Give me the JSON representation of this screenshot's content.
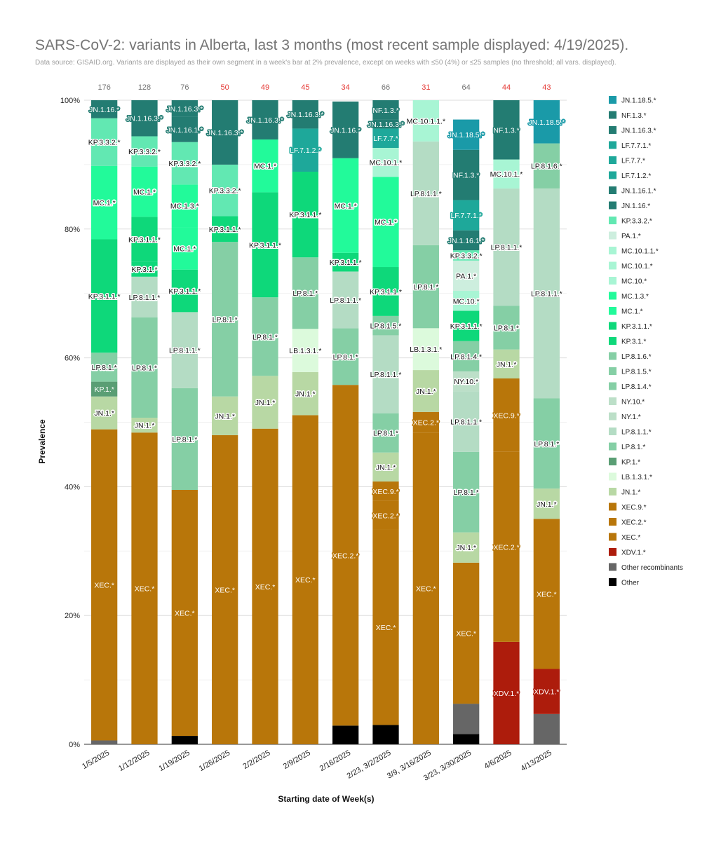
{
  "chart_data": {
    "type": "bar",
    "stacked": true,
    "title": "SARS-CoV-2: variants in Alberta, last 3 months (most recent sample displayed: 4/19/2025).",
    "subtitle": "Data source: GISAID.org. Variants are displayed as their own segment in a week's bar at 2% prevalence, except on weeks with ≤50 (4%) or ≤25 samples (no threshold; all vars. displayed).",
    "xlabel": "Starting date of Week(s)",
    "ylabel": "Prevalence",
    "ylim": [
      0,
      100
    ],
    "y_ticks": [
      "0%",
      "20%",
      "40%",
      "60%",
      "80%",
      "100%"
    ],
    "legend_position": "right",
    "categories": [
      "1/5/2025",
      "1/12/2025",
      "1/19/2025",
      "1/26/2025",
      "2/2/2025",
      "2/9/2025",
      "2/16/2025",
      "2/23, 3/2/2025",
      "3/9, 3/16/2025",
      "3/23, 3/30/2025",
      "4/6/2025",
      "4/13/2025"
    ],
    "sample_counts": [
      "176",
      "128",
      "76",
      "50",
      "49",
      "45",
      "34",
      "66",
      "31",
      "64",
      "44",
      "43"
    ],
    "count_colors": [
      "#757575",
      "#757575",
      "#757575",
      "#e53935",
      "#e53935",
      "#e53935",
      "#e53935",
      "#757575",
      "#e53935",
      "#757575",
      "#e53935",
      "#e53935"
    ],
    "legend": [
      {
        "name": "JN.1.18.5.*",
        "color": "#1a9aa8"
      },
      {
        "name": "NF.1.3.*",
        "color": "#237c72"
      },
      {
        "name": "JN.1.16.3.*",
        "color": "#237c72"
      },
      {
        "name": "LF.7.7.1.*",
        "color": "#1ea89a"
      },
      {
        "name": "LF.7.7.*",
        "color": "#1ea89a"
      },
      {
        "name": "LF.7.1.2.*",
        "color": "#1ea89a"
      },
      {
        "name": "JN.1.16.1.*",
        "color": "#237c72"
      },
      {
        "name": "JN.1.16.*",
        "color": "#237c72"
      },
      {
        "name": "KP.3.3.2.*",
        "color": "#62e8b2"
      },
      {
        "name": "PA.1.*",
        "color": "#cdeede"
      },
      {
        "name": "MC.10.1.1.*",
        "color": "#a8f5d4"
      },
      {
        "name": "MC.10.1.*",
        "color": "#a8f5d4"
      },
      {
        "name": "MC.10.*",
        "color": "#a8f5d4"
      },
      {
        "name": "MC.1.3.*",
        "color": "#22fa9a"
      },
      {
        "name": "MC.1.*",
        "color": "#22fa9a"
      },
      {
        "name": "KP.3.1.1.*",
        "color": "#0ed87a"
      },
      {
        "name": "KP.3.1.*",
        "color": "#0ed87a"
      },
      {
        "name": "LP.8.1.6.*",
        "color": "#85cfa5"
      },
      {
        "name": "LP.8.1.5.*",
        "color": "#85cfa5"
      },
      {
        "name": "LP.8.1.4.*",
        "color": "#85cfa5"
      },
      {
        "name": "NY.10.*",
        "color": "#bcdfc8"
      },
      {
        "name": "NY.1.*",
        "color": "#bcdfc8"
      },
      {
        "name": "LP.8.1.1.*",
        "color": "#b4dcc4"
      },
      {
        "name": "LP.8.1.*",
        "color": "#85cfa5"
      },
      {
        "name": "KP.1.*",
        "color": "#5a9e74"
      },
      {
        "name": "LB.1.3.1.*",
        "color": "#dcfadc"
      },
      {
        "name": "JN.1.*",
        "color": "#b8d8a4"
      },
      {
        "name": "XEC.9.*",
        "color": "#b8760a"
      },
      {
        "name": "XEC.2.*",
        "color": "#b8760a"
      },
      {
        "name": "XEC.*",
        "color": "#b8760a"
      },
      {
        "name": "XDV.1.*",
        "color": "#ad1c0c"
      },
      {
        "name": "Other recombinants",
        "color": "#666666"
      },
      {
        "name": "Other",
        "color": "#000000"
      }
    ],
    "series": [
      {
        "category": "1/5/2025",
        "segments": [
          {
            "name": "Other recombinants",
            "value": 0.6,
            "label": false
          },
          {
            "name": "XEC.*",
            "value": 48.3,
            "label": true
          },
          {
            "name": "JN.1.*",
            "value": 5.1,
            "label": true
          },
          {
            "name": "KP.1.*",
            "value": 2.3,
            "label": true
          },
          {
            "name": "LP.8.1.*",
            "value": 4.5,
            "label": true
          },
          {
            "name": "KP.3.1.1.*",
            "value": 17.6,
            "label": true
          },
          {
            "name": "MC.1.*",
            "value": 11.4,
            "label": true
          },
          {
            "name": "KP.3.3.2.*",
            "value": 7.4,
            "label": true
          },
          {
            "name": "JN.1.16.*",
            "value": 2.8,
            "label": true
          }
        ]
      },
      {
        "category": "1/12/2025",
        "segments": [
          {
            "name": "XEC.*",
            "value": 48.4,
            "label": true
          },
          {
            "name": "JN.1.*",
            "value": 2.3,
            "label": true
          },
          {
            "name": "LP.8.1.*",
            "value": 15.6,
            "label": true
          },
          {
            "name": "LP.8.1.1.*",
            "value": 6.3,
            "label": true
          },
          {
            "name": "KP.3.1.*",
            "value": 2.3,
            "label": true
          },
          {
            "name": "KP.3.1.1.*",
            "value": 7.0,
            "label": true
          },
          {
            "name": "MC.1.*",
            "value": 7.8,
            "label": true
          },
          {
            "name": "KP.3.3.2.*",
            "value": 4.7,
            "label": true
          },
          {
            "name": "JN.1.16.3.*",
            "value": 5.6,
            "label": true
          }
        ]
      },
      {
        "category": "1/19/2025",
        "segments": [
          {
            "name": "Other",
            "value": 1.3,
            "label": false
          },
          {
            "name": "XEC.*",
            "value": 38.2,
            "label": true
          },
          {
            "name": "LP.8.1.*",
            "value": 15.8,
            "label": true
          },
          {
            "name": "LP.8.1.1.*",
            "value": 11.8,
            "label": true
          },
          {
            "name": "KP.3.1.1.*",
            "value": 6.6,
            "label": true
          },
          {
            "name": "MC.1.*",
            "value": 6.6,
            "label": true
          },
          {
            "name": "MC.1.3.*",
            "value": 6.6,
            "label": true
          },
          {
            "name": "KP.3.3.2.*",
            "value": 6.6,
            "label": true
          },
          {
            "name": "JN.1.16.1.*",
            "value": 3.9,
            "label": true
          },
          {
            "name": "JN.1.16.3.*",
            "value": 2.6,
            "label": true
          }
        ]
      },
      {
        "category": "1/26/2025",
        "segments": [
          {
            "name": "XEC.*",
            "value": 48.0,
            "label": true
          },
          {
            "name": "JN.1.*",
            "value": 6.0,
            "label": true
          },
          {
            "name": "LP.8.1.*",
            "value": 24.0,
            "label": true
          },
          {
            "name": "KP.3.1.1.*",
            "value": 4.0,
            "label": true
          },
          {
            "name": "KP.3.3.2.*",
            "value": 8.0,
            "label": true
          },
          {
            "name": "JN.1.16.3.*",
            "value": 10.0,
            "label": true
          }
        ]
      },
      {
        "category": "2/2/2025",
        "segments": [
          {
            "name": "XEC.*",
            "value": 49.0,
            "label": true
          },
          {
            "name": "JN.1.*",
            "value": 8.2,
            "label": true
          },
          {
            "name": "LP.8.1.*",
            "value": 12.2,
            "label": true
          },
          {
            "name": "KP.3.1.1.*",
            "value": 16.3,
            "label": true
          },
          {
            "name": "MC.1.*",
            "value": 8.2,
            "label": true
          },
          {
            "name": "JN.1.16.3.*",
            "value": 6.1,
            "label": true
          }
        ]
      },
      {
        "category": "2/9/2025",
        "segments": [
          {
            "name": "XEC.*",
            "value": 51.1,
            "label": true
          },
          {
            "name": "JN.1.*",
            "value": 6.7,
            "label": true
          },
          {
            "name": "LB.1.3.1.*",
            "value": 6.7,
            "label": true
          },
          {
            "name": "LP.8.1.*",
            "value": 11.1,
            "label": true
          },
          {
            "name": "KP.3.1.1.*",
            "value": 13.3,
            "label": true
          },
          {
            "name": "LF.7.1.2.*",
            "value": 6.7,
            "label": true
          },
          {
            "name": "JN.1.16.3.*",
            "value": 4.4,
            "label": true
          }
        ]
      },
      {
        "category": "2/16/2025",
        "segments": [
          {
            "name": "Other",
            "value": 2.9,
            "label": false
          },
          {
            "name": "XEC.2.*",
            "value": 52.9,
            "label": true
          },
          {
            "name": "LP.8.1.*",
            "value": 8.8,
            "label": true
          },
          {
            "name": "LP.8.1.1.*",
            "value": 8.8,
            "label": true
          },
          {
            "name": "KP.3.1.1.*",
            "value": 2.9,
            "label": true
          },
          {
            "name": "MC.1.*",
            "value": 14.7,
            "label": true
          },
          {
            "name": "JN.1.16.*",
            "value": 8.8,
            "label": true
          }
        ]
      },
      {
        "category": "2/23, 3/2/2025",
        "segments": [
          {
            "name": "Other",
            "value": 3.0,
            "label": false
          },
          {
            "name": "XEC.*",
            "value": 30.3,
            "label": true
          },
          {
            "name": "XEC.2.*",
            "value": 4.5,
            "label": true
          },
          {
            "name": "XEC.9.*",
            "value": 3.0,
            "label": true
          },
          {
            "name": "JN.1.*",
            "value": 4.5,
            "label": true
          },
          {
            "name": "LP.8.1.*",
            "value": 6.1,
            "label": true
          },
          {
            "name": "LP.8.1.1.*",
            "value": 12.1,
            "label": true
          },
          {
            "name": "LP.8.1.5.*",
            "value": 3.0,
            "label": true
          },
          {
            "name": "KP.3.1.1.*",
            "value": 7.6,
            "label": true
          },
          {
            "name": "MC.1.*",
            "value": 14.0,
            "label": true
          },
          {
            "name": "MC.10.1.*",
            "value": 4.5,
            "label": true
          },
          {
            "name": "LF.7.7.*",
            "value": 3.0,
            "label": true
          },
          {
            "name": "JN.1.16.3.*",
            "value": 1.4,
            "label": true
          },
          {
            "name": "NF.1.3.*",
            "value": 3.0,
            "label": true
          }
        ]
      },
      {
        "category": "3/9, 3/16/2025",
        "segments": [
          {
            "name": "XEC.*",
            "value": 48.4,
            "label": true
          },
          {
            "name": "XEC.2.*",
            "value": 3.2,
            "label": true
          },
          {
            "name": "JN.1.*",
            "value": 6.5,
            "label": true
          },
          {
            "name": "LB.1.3.1.*",
            "value": 6.5,
            "label": true
          },
          {
            "name": "LP.8.1.*",
            "value": 12.9,
            "label": true
          },
          {
            "name": "LP.8.1.1.*",
            "value": 16.1,
            "label": true
          },
          {
            "name": "MC.10.1.1.*",
            "value": 6.4,
            "label": true
          }
        ]
      },
      {
        "category": "3/23, 3/30/2025",
        "segments": [
          {
            "name": "Other",
            "value": 1.6,
            "label": false
          },
          {
            "name": "Other recombinants",
            "value": 4.7,
            "label": false
          },
          {
            "name": "XEC.*",
            "value": 21.9,
            "label": true
          },
          {
            "name": "JN.1.*",
            "value": 4.7,
            "label": true
          },
          {
            "name": "LP.8.1.*",
            "value": 12.5,
            "label": true
          },
          {
            "name": "LP.8.1.1.*",
            "value": 9.4,
            "label": true
          },
          {
            "name": "NY.10.*",
            "value": 3.1,
            "label": true
          },
          {
            "name": "LP.8.1.4.*",
            "value": 4.7,
            "label": true
          },
          {
            "name": "KP.3.1.1.*",
            "value": 4.7,
            "label": true
          },
          {
            "name": "MC.10.*",
            "value": 3.1,
            "label": true
          },
          {
            "name": "PA.1.*",
            "value": 4.7,
            "label": true
          },
          {
            "name": "KP.3.3.2.*",
            "value": 1.6,
            "label": true
          },
          {
            "name": "JN.1.16.1.*",
            "value": 3.1,
            "label": true
          },
          {
            "name": "LF.7.7.1.*",
            "value": 4.7,
            "label": true
          },
          {
            "name": "NF.1.3.*",
            "value": 7.8,
            "label": true
          },
          {
            "name": "JN.1.18.5.*",
            "value": 4.7,
            "label": true
          }
        ]
      },
      {
        "category": "4/6/2025",
        "segments": [
          {
            "name": "XDV.1.*",
            "value": 15.9,
            "label": true
          },
          {
            "name": "XEC.2.*",
            "value": 29.5,
            "label": true
          },
          {
            "name": "XEC.9.*",
            "value": 11.4,
            "label": true
          },
          {
            "name": "JN.1.*",
            "value": 4.5,
            "label": true
          },
          {
            "name": "LP.8.1.*",
            "value": 6.8,
            "label": true
          },
          {
            "name": "LP.8.1.1.*",
            "value": 18.2,
            "label": true
          },
          {
            "name": "MC.10.1.*",
            "value": 4.5,
            "label": true
          },
          {
            "name": "NF.1.3.*",
            "value": 9.2,
            "label": true
          }
        ]
      },
      {
        "category": "4/13/2025",
        "segments": [
          {
            "name": "Other recombinants",
            "value": 4.7,
            "label": false
          },
          {
            "name": "XDV.1.*",
            "value": 7.0,
            "label": true
          },
          {
            "name": "XEC.*",
            "value": 23.3,
            "label": true
          },
          {
            "name": "JN.1.*",
            "value": 4.7,
            "label": true
          },
          {
            "name": "LP.8.1.*",
            "value": 14.0,
            "label": true
          },
          {
            "name": "LP.8.1.1.*",
            "value": 32.6,
            "label": true
          },
          {
            "name": "NY.1.*",
            "value": 0.0,
            "label": true
          },
          {
            "name": "LP.8.1.6.*",
            "value": 7.0,
            "label": true
          },
          {
            "name": "JN.1.18.5.*",
            "value": 6.7,
            "label": true
          }
        ]
      }
    ]
  }
}
